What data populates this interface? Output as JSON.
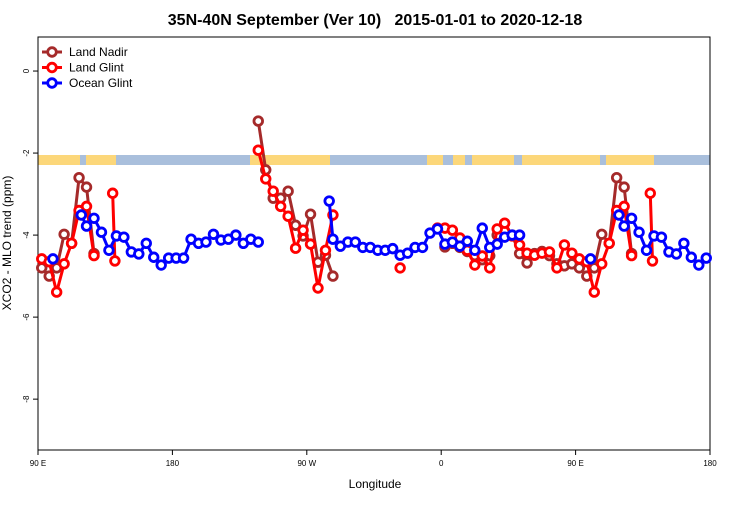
{
  "chart_data": {
    "type": "line",
    "title": "35N-40N September (Ver 10)   2015-01-01 to 2020-12-18",
    "x_label": "Longitude",
    "y_label": "XCO2 - MLO trend (ppm)",
    "xlim": [
      90,
      540
    ],
    "ylim": [
      -9.24,
      0.83
    ],
    "xticks": [
      {
        "value": 90,
        "label": "90 E"
      },
      180,
      {
        "value": 270,
        "label": "90 W"
      },
      {
        "value": 360,
        "label": "0"
      },
      {
        "value": 450,
        "label": "90 E"
      },
      {
        "value": 540,
        "label": "180"
      }
    ],
    "yticks": [
      0,
      -2,
      -4,
      -6,
      -8
    ],
    "legend": "upper left",
    "series": [
      {
        "name": "Land Nadir",
        "color": "#a52a2a",
        "x": [
          92.5,
          97.5,
          102.5,
          107.5,
          112.5,
          117.5,
          122.5,
          127.5,
          null,
          237.5,
          242.5,
          247.5,
          252.5,
          257.5,
          262.5,
          267.5,
          272.5,
          277.5,
          282.5,
          287.5,
          null,
          362.5,
          367.5,
          372.5,
          377.5,
          382.5,
          387.5,
          392.5,
          397.5,
          402.5,
          407.5,
          412.5,
          417.5,
          422.5,
          427.5,
          432.5,
          437.5,
          442.5,
          447.5,
          452.5,
          457.5,
          462.5,
          467.5,
          472.5,
          477.5,
          482.5,
          487.5
        ],
        "values": [
          -4.8,
          -5.0,
          -4.8,
          -3.98,
          -4.2,
          -2.6,
          -2.83,
          -4.45,
          null,
          -1.22,
          -2.41,
          -3.1,
          -3.1,
          -2.93,
          -3.76,
          -4.02,
          -3.49,
          -4.66,
          -4.49,
          -5.0,
          null,
          -4.29,
          -4.2,
          -4.3,
          -4.4,
          -4.5,
          -4.6,
          -4.5,
          -4.0,
          -3.9,
          -4.0,
          -4.45,
          -4.68,
          -4.45,
          -4.4,
          -4.5,
          -4.7,
          -4.75,
          -4.7,
          -4.8,
          -5.0,
          -4.8,
          -3.98,
          -4.2,
          -2.6,
          -2.83,
          -4.45
        ]
      },
      {
        "name": "Land Glint",
        "color": "#ff0000",
        "x": [
          92.5,
          97.5,
          102.5,
          107.5,
          112.5,
          117.5,
          122.5,
          127.5,
          null,
          140,
          141.5,
          null,
          237.5,
          242.5,
          247.5,
          252.5,
          257.5,
          262.5,
          267.5,
          272.5,
          277.5,
          282.5,
          287.5,
          null,
          332.5,
          null,
          357.5,
          362.5,
          367.5,
          372.5,
          377.5,
          382.5,
          387.5,
          392.5,
          397.5,
          402.5,
          407.5,
          412.5,
          417.5,
          422.5,
          427.5,
          432.5,
          437.5,
          442.5,
          447.5,
          452.5,
          457.5,
          462.5,
          467.5,
          472.5,
          477.5,
          482.5,
          487.5,
          null,
          500,
          501.5
        ],
        "values": [
          -4.58,
          -4.65,
          -5.39,
          -4.7,
          -4.2,
          -3.4,
          -3.3,
          -4.5,
          null,
          -2.98,
          -4.63,
          null,
          -1.93,
          -2.63,
          -2.93,
          -3.3,
          -3.54,
          -4.32,
          -3.88,
          -4.22,
          -5.29,
          -4.37,
          -3.51,
          null,
          -4.8,
          null,
          -3.83,
          -3.83,
          -3.88,
          -4.07,
          -4.37,
          -4.73,
          -4.51,
          -4.8,
          -3.85,
          -3.71,
          -4.02,
          -4.24,
          -4.44,
          -4.49,
          -4.44,
          -4.41,
          -4.8,
          -4.24,
          -4.44,
          -4.58,
          -4.65,
          -5.39,
          -4.7,
          -4.2,
          -3.4,
          -3.3,
          -4.5,
          null,
          -2.98,
          -4.63
        ]
      },
      {
        "name": "Ocean Glint",
        "color": "#0000ff",
        "x": [
          100,
          null,
          119,
          122.5,
          127.5,
          132.5,
          137.5,
          142.5,
          147.5,
          152.5,
          157.5,
          162.5,
          167.5,
          172.5,
          177.5,
          182.5,
          187.5,
          192.5,
          197.5,
          202.5,
          207.5,
          212.5,
          217.5,
          222.5,
          227.5,
          232.5,
          237.5,
          null,
          285,
          287.5,
          292.5,
          297.5,
          302.5,
          307.5,
          312.5,
          317.5,
          322.5,
          327.5,
          332.5,
          337.5,
          342.5,
          347.5,
          352.5,
          357.5,
          362.5,
          367.5,
          372.5,
          377.5,
          382.5,
          387.5,
          392.5,
          397.5,
          402.5,
          407.5,
          412.5,
          null,
          460,
          null,
          479,
          482.5,
          487.5,
          492.5,
          497.5,
          502.5,
          507.5,
          512.5,
          517.5,
          522.5,
          527.5,
          532.5,
          537.5
        ],
        "values": [
          -4.58,
          null,
          -3.51,
          -3.78,
          -3.59,
          -3.93,
          -4.37,
          -4.02,
          -4.05,
          -4.41,
          -4.46,
          -4.2,
          -4.54,
          -4.73,
          -4.56,
          -4.56,
          -4.56,
          -4.1,
          -4.2,
          -4.17,
          -3.98,
          -4.12,
          -4.1,
          -4.0,
          -4.2,
          -4.1,
          -4.17,
          null,
          -3.17,
          -4.1,
          -4.27,
          -4.17,
          -4.17,
          -4.3,
          -4.3,
          -4.37,
          -4.37,
          -4.33,
          -4.49,
          -4.44,
          -4.3,
          -4.3,
          -3.95,
          -3.85,
          -4.22,
          -4.17,
          -4.27,
          -4.15,
          -4.37,
          -3.83,
          -4.3,
          -4.22,
          -4.05,
          -4.0,
          -4.0,
          null,
          -4.58,
          null,
          -3.51,
          -3.78,
          -3.59,
          -3.93,
          -4.37,
          -4.02,
          -4.05,
          -4.41,
          -4.46,
          -4.2,
          -4.54,
          -4.73,
          -4.56
        ]
      }
    ]
  }
}
